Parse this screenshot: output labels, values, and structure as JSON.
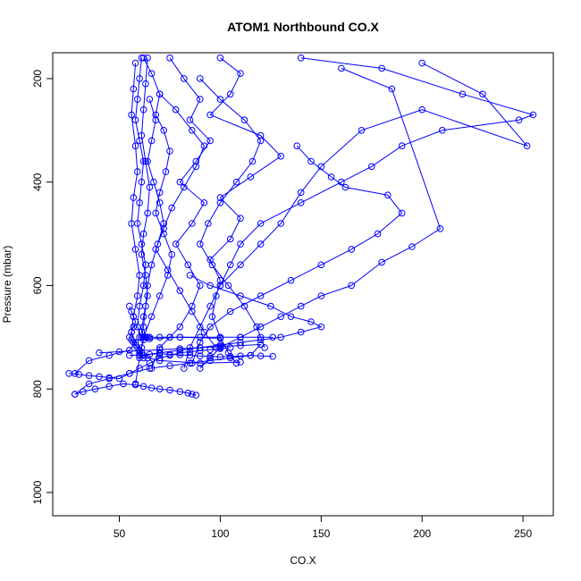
{
  "chart_data": {
    "type": "scatter",
    "title": "ATOM1 Northbound CO.X",
    "xlabel": "CO.X",
    "ylabel": "Pressure (mbar)",
    "xlim": [
      17,
      265
    ],
    "ylim": [
      1045,
      150
    ],
    "y_reversed": true,
    "x_ticks": [
      50,
      100,
      150,
      200,
      250
    ],
    "y_ticks": [
      200,
      400,
      600,
      800,
      1000
    ],
    "x_tick_labels": [
      "50",
      "100",
      "150",
      "200",
      "250"
    ],
    "y_tick_labels": [
      "200",
      "400",
      "600",
      "800",
      "1000"
    ],
    "series_color": "#0000ff",
    "marker": "open-circle",
    "connect_points": true,
    "grid": false,
    "legend": "none",
    "series": [
      {
        "x": [
          61,
          60,
          59,
          58,
          60,
          62,
          61,
          60,
          59,
          61,
          63,
          62,
          60,
          59,
          61,
          62,
          61,
          60,
          62,
          64,
          70,
          90,
          110
        ],
        "y": [
          160,
          200,
          240,
          280,
          320,
          360,
          400,
          440,
          480,
          520,
          560,
          600,
          640,
          680,
          700,
          705,
          720,
          730,
          735,
          740,
          745,
          750,
          748
        ]
      },
      {
        "x": [
          64,
          63,
          62,
          61,
          63,
          65,
          64,
          62,
          61,
          63,
          64,
          62,
          61,
          63,
          65,
          80,
          100
        ],
        "y": [
          160,
          210,
          260,
          310,
          360,
          410,
          460,
          500,
          540,
          580,
          620,
          660,
          690,
          700,
          703,
          700,
          702
        ]
      },
      {
        "x": [
          58,
          57,
          56,
          58,
          59,
          57,
          56,
          58,
          60,
          59,
          57,
          56,
          58,
          55,
          45,
          35,
          28
        ],
        "y": [
          170,
          220,
          270,
          330,
          380,
          430,
          480,
          530,
          580,
          620,
          660,
          690,
          710,
          725,
          735,
          745,
          770
        ]
      },
      {
        "x": [
          62,
          66,
          70,
          68,
          72,
          75,
          73,
          70,
          68,
          72,
          76,
          74,
          70,
          66,
          62,
          60,
          58
        ],
        "y": [
          160,
          190,
          230,
          270,
          300,
          340,
          380,
          420,
          460,
          500,
          540,
          580,
          620,
          660,
          700,
          740,
          790
        ]
      },
      {
        "x": [
          75,
          82,
          90,
          85,
          95,
          88,
          80,
          92,
          86,
          78,
          84,
          90,
          86,
          80,
          75,
          70,
          66
        ],
        "y": [
          160,
          200,
          240,
          280,
          320,
          360,
          400,
          440,
          480,
          520,
          560,
          600,
          640,
          680,
          700,
          720,
          760
        ]
      },
      {
        "x": [
          100,
          110,
          105,
          95,
          120,
          130,
          115,
          100,
          110,
          105,
          95,
          100,
          98,
          96,
          100,
          104,
          108
        ],
        "y": [
          160,
          190,
          230,
          270,
          310,
          350,
          390,
          430,
          470,
          510,
          550,
          590,
          620,
          660,
          700,
          730,
          750
        ]
      },
      {
        "x": [
          140,
          180,
          220,
          255,
          248,
          210,
          190,
          175,
          160,
          140,
          120,
          110,
          105,
          100
        ],
        "y": [
          160,
          180,
          230,
          270,
          280,
          300,
          330,
          370,
          400,
          440,
          480,
          520,
          560,
          600
        ]
      },
      {
        "x": [
          200,
          230,
          252,
          200,
          170,
          150,
          140,
          130,
          120,
          110,
          100,
          95,
          90,
          85,
          82
        ],
        "y": [
          170,
          230,
          330,
          260,
          300,
          370,
          420,
          480,
          520,
          560,
          600,
          640,
          680,
          720,
          760
        ]
      },
      {
        "x": [
          160,
          185,
          209,
          195,
          180,
          165,
          150,
          140,
          130,
          120,
          110,
          100,
          95,
          90
        ],
        "y": [
          180,
          220,
          490,
          525,
          555,
          600,
          620,
          640,
          660,
          680,
          700,
          720,
          740,
          760
        ]
      },
      {
        "x": [
          138,
          145,
          155,
          162,
          183,
          190,
          178,
          165,
          150,
          135,
          120,
          105,
          95,
          90,
          86
        ],
        "y": [
          330,
          360,
          390,
          410,
          425,
          460,
          500,
          530,
          560,
          590,
          620,
          650,
          680,
          710,
          750
        ]
      },
      {
        "x": [
          85,
          95,
          110,
          125,
          135,
          145,
          150,
          140,
          130,
          120,
          110,
          100,
          90,
          80,
          70,
          60
        ],
        "y": [
          580,
          600,
          620,
          640,
          660,
          670,
          680,
          690,
          700,
          705,
          710,
          715,
          720,
          725,
          730,
          735
        ]
      },
      {
        "x": [
          40,
          50,
          60,
          70,
          80,
          90,
          100,
          110,
          120,
          115,
          105,
          95,
          85,
          75,
          65,
          55,
          45,
          35,
          28
        ],
        "y": [
          730,
          728,
          726,
          724,
          722,
          720,
          718,
          716,
          714,
          735,
          740,
          745,
          750,
          755,
          760,
          770,
          780,
          790,
          810
        ]
      },
      {
        "x": [
          25,
          30,
          35,
          40,
          45,
          50,
          55,
          60,
          65,
          70,
          75,
          80,
          85,
          90,
          95,
          100,
          105
        ],
        "y": [
          770,
          772,
          774,
          776,
          778,
          780,
          770,
          760,
          750,
          740,
          735,
          730,
          728,
          726,
          724,
          722,
          720
        ]
      },
      {
        "x": [
          28,
          32,
          38,
          45,
          52,
          58,
          62,
          66,
          70,
          75,
          80,
          84,
          86,
          88
        ],
        "y": [
          810,
          805,
          800,
          795,
          790,
          792,
          795,
          798,
          800,
          802,
          805,
          808,
          810,
          812
        ]
      },
      {
        "x": [
          60,
          61,
          62,
          63,
          64,
          65,
          70,
          75,
          80,
          90,
          100,
          110,
          120,
          126
        ],
        "y": [
          700,
          700,
          700,
          700,
          700,
          700,
          700,
          700,
          700,
          700,
          700,
          700,
          700,
          700
        ]
      },
      {
        "x": [
          55,
          60,
          65,
          70,
          75,
          80,
          85,
          90,
          95,
          100,
          105,
          110,
          115,
          120,
          126
        ],
        "y": [
          735,
          734,
          733,
          732,
          733,
          734,
          735,
          736,
          737,
          738,
          737,
          736,
          735,
          736,
          737
        ]
      },
      {
        "x": [
          70,
          78,
          86,
          92,
          88,
          82,
          76,
          72,
          68,
          74,
          80,
          86,
          92,
          98
        ],
        "y": [
          230,
          260,
          300,
          330,
          370,
          410,
          450,
          490,
          530,
          570,
          610,
          650,
          690,
          720
        ]
      },
      {
        "x": [
          90,
          100,
          112,
          120,
          116,
          108,
          100,
          94,
          90,
          96,
          104,
          112,
          118,
          122
        ],
        "y": [
          200,
          240,
          280,
          320,
          360,
          400,
          440,
          480,
          520,
          560,
          600,
          640,
          680,
          720
        ]
      },
      {
        "x": [
          55,
          56,
          57,
          58,
          57,
          56,
          55,
          56,
          57,
          58,
          59,
          60,
          61,
          62
        ],
        "y": [
          640,
          650,
          660,
          670,
          680,
          690,
          700,
          705,
          710,
          715,
          720,
          725,
          730,
          740
        ]
      },
      {
        "x": [
          65,
          68,
          66,
          64,
          67,
          70,
          72,
          69,
          66,
          64,
          63,
          62,
          61
        ],
        "y": [
          240,
          280,
          320,
          360,
          400,
          440,
          480,
          520,
          560,
          600,
          640,
          680,
          700
        ]
      }
    ]
  }
}
